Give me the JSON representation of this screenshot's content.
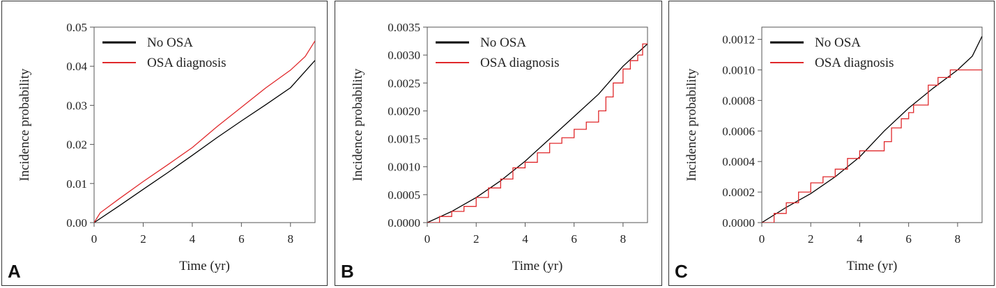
{
  "chart_data": [
    {
      "panel": "A",
      "type": "line",
      "xlabel": "Time (yr)",
      "ylabel": "Incidence probability",
      "xlim": [
        0,
        9
      ],
      "ylim": [
        0,
        0.05
      ],
      "xticks": [
        0,
        2,
        4,
        6,
        8
      ],
      "xtick_labels": [
        "0",
        "2",
        "4",
        "6",
        "8"
      ],
      "yticks": [
        0,
        0.01,
        0.02,
        0.03,
        0.04,
        0.05
      ],
      "ytick_labels": [
        "0.00",
        "0.01",
        "0.02",
        "0.03",
        "0.04",
        "0.05"
      ],
      "legend_position": "top-left",
      "series": [
        {
          "name": "No OSA",
          "color": "#000000",
          "x": [
            0,
            1,
            2,
            3,
            4,
            5,
            6,
            7,
            8,
            9
          ],
          "y": [
            0,
            0.0042,
            0.0085,
            0.0128,
            0.0172,
            0.0217,
            0.026,
            0.0302,
            0.0345,
            0.0415
          ],
          "step": false
        },
        {
          "name": "OSA diagnosis",
          "color": "#e0282b",
          "x": [
            0,
            0.25,
            1,
            2,
            3,
            4,
            5,
            6,
            7,
            8,
            8.6,
            9
          ],
          "y": [
            0,
            0.0025,
            0.006,
            0.0105,
            0.0148,
            0.0192,
            0.0245,
            0.0295,
            0.0345,
            0.039,
            0.0425,
            0.0465
          ],
          "step": false
        }
      ]
    },
    {
      "panel": "B",
      "type": "line",
      "xlabel": "Time (yr)",
      "ylabel": "Incidence probability",
      "xlim": [
        0,
        9
      ],
      "ylim": [
        0,
        0.0035
      ],
      "xticks": [
        0,
        2,
        4,
        6,
        8
      ],
      "xtick_labels": [
        "0",
        "2",
        "4",
        "6",
        "8"
      ],
      "yticks": [
        0,
        0.0005,
        0.001,
        0.0015,
        0.002,
        0.0025,
        0.003,
        0.0035
      ],
      "ytick_labels": [
        "0.0000",
        "0.0005",
        "0.0010",
        "0.0015",
        "0.0020",
        "0.0025",
        "0.0030",
        "0.0035"
      ],
      "legend_position": "top-left",
      "series": [
        {
          "name": "No OSA",
          "color": "#000000",
          "x": [
            0,
            1,
            2,
            3,
            4,
            5,
            6,
            7,
            8,
            8.5,
            9
          ],
          "y": [
            0,
            0.0002,
            0.00045,
            0.00075,
            0.0011,
            0.0015,
            0.0019,
            0.0023,
            0.0028,
            0.003,
            0.0032
          ],
          "step": false
        },
        {
          "name": "OSA diagnosis",
          "color": "#e0282b",
          "x": [
            0,
            0.5,
            1,
            1.5,
            2,
            2.5,
            3,
            3.5,
            4,
            4.5,
            5,
            5.5,
            6,
            6.5,
            7,
            7.3,
            7.6,
            8,
            8.3,
            8.6,
            8.8,
            9
          ],
          "y": [
            0,
            0.00011,
            0.0002,
            0.00029,
            0.00045,
            0.00062,
            0.00078,
            0.00098,
            0.00108,
            0.00125,
            0.00142,
            0.00152,
            0.00167,
            0.0018,
            0.002,
            0.00225,
            0.0025,
            0.00275,
            0.0029,
            0.003,
            0.0032,
            0.0032
          ],
          "step": true
        }
      ]
    },
    {
      "panel": "C",
      "type": "line",
      "xlabel": "Time (yr)",
      "ylabel": "Incidence probability",
      "xlim": [
        0,
        9
      ],
      "ylim": [
        0,
        0.00128
      ],
      "xticks": [
        0,
        2,
        4,
        6,
        8
      ],
      "xtick_labels": [
        "0",
        "2",
        "4",
        "6",
        "8"
      ],
      "yticks": [
        0,
        0.0002,
        0.0004,
        0.0006,
        0.0008,
        0.001,
        0.0012
      ],
      "ytick_labels": [
        "0.0000",
        "0.0002",
        "0.0004",
        "0.0006",
        "0.0008",
        "0.0010",
        "0.0012"
      ],
      "legend_position": "top-left",
      "series": [
        {
          "name": "No OSA",
          "color": "#000000",
          "x": [
            0,
            1,
            2,
            3,
            4,
            5,
            6,
            7,
            8,
            8.6,
            9
          ],
          "y": [
            0,
            0.0001,
            0.00019,
            0.0003,
            0.00043,
            0.0006,
            0.00075,
            0.00088,
            0.001,
            0.00109,
            0.00122
          ],
          "step": false
        },
        {
          "name": "OSA diagnosis",
          "color": "#e0282b",
          "x": [
            0,
            0.5,
            1,
            1.5,
            2,
            2.5,
            3,
            3.5,
            4,
            4.5,
            5,
            5.3,
            5.7,
            6,
            6.2,
            6.8,
            7.2,
            7.7,
            8,
            9
          ],
          "y": [
            0,
            6e-05,
            0.00013,
            0.0002,
            0.00026,
            0.0003,
            0.00035,
            0.00042,
            0.00047,
            0.00047,
            0.00053,
            0.00062,
            0.00068,
            0.00072,
            0.00077,
            0.0009,
            0.00095,
            0.001,
            0.001,
            0.001
          ],
          "step": true
        }
      ]
    }
  ],
  "panel_letters": [
    "A",
    "B",
    "C"
  ]
}
